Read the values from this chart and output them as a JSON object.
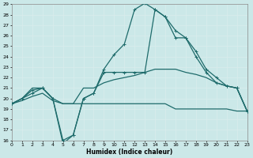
{
  "xlabel": "Humidex (Indice chaleur)",
  "xlim": [
    0,
    23
  ],
  "ylim": [
    16,
    29
  ],
  "yticks": [
    16,
    17,
    18,
    19,
    20,
    21,
    22,
    23,
    24,
    25,
    26,
    27,
    28,
    29
  ],
  "xticks": [
    0,
    1,
    2,
    3,
    4,
    5,
    6,
    7,
    8,
    9,
    10,
    11,
    12,
    13,
    14,
    15,
    16,
    17,
    18,
    19,
    20,
    21,
    22,
    23
  ],
  "bg_color": "#cbe8e8",
  "grid_color": "#d8ecec",
  "line_color": "#1e6b6b",
  "curve1": {
    "x": [
      0,
      1,
      2,
      3,
      4,
      5,
      6,
      7,
      8,
      9,
      10,
      11,
      12,
      13,
      14,
      15,
      16,
      17,
      18,
      19,
      20,
      21,
      22,
      23
    ],
    "y": [
      19.5,
      20.0,
      20.5,
      21.0,
      20.0,
      15.7,
      16.5,
      20.0,
      20.5,
      22.8,
      24.2,
      25.2,
      28.5,
      29.1,
      28.5,
      27.8,
      26.5,
      25.8,
      24.5,
      22.8,
      22.0,
      21.2,
      21.0,
      18.8
    ],
    "marker": true
  },
  "curve2": {
    "x": [
      0,
      1,
      2,
      3,
      4,
      5,
      6,
      7,
      8,
      9,
      10,
      11,
      12,
      13,
      14,
      15,
      16,
      17,
      18,
      19,
      20,
      21,
      22,
      23
    ],
    "y": [
      19.5,
      20.0,
      21.0,
      21.0,
      20.0,
      19.5,
      19.5,
      21.0,
      21.0,
      21.5,
      21.8,
      22.0,
      22.2,
      22.5,
      22.8,
      22.8,
      22.8,
      22.5,
      22.3,
      22.0,
      21.5,
      21.2,
      21.0,
      18.8
    ],
    "marker": false
  },
  "curve3": {
    "x": [
      0,
      1,
      2,
      3,
      4,
      5,
      6,
      7,
      8,
      9,
      10,
      11,
      12,
      13,
      14,
      15,
      16,
      17,
      18,
      19,
      20,
      21,
      22,
      23
    ],
    "y": [
      19.5,
      19.8,
      20.2,
      20.5,
      19.8,
      19.5,
      19.5,
      19.5,
      19.5,
      19.5,
      19.5,
      19.5,
      19.5,
      19.5,
      19.5,
      19.5,
      19.0,
      19.0,
      19.0,
      19.0,
      19.0,
      19.0,
      18.8,
      18.8
    ],
    "marker": false
  },
  "curve4": {
    "x": [
      0,
      1,
      2,
      3,
      4,
      5,
      6,
      7,
      8,
      9,
      10,
      11,
      12,
      13,
      14,
      15,
      16,
      17,
      18,
      19,
      20,
      21,
      22,
      23
    ],
    "y": [
      19.5,
      20.0,
      20.8,
      21.0,
      20.0,
      16.0,
      16.5,
      20.0,
      20.5,
      22.5,
      22.5,
      22.5,
      22.5,
      22.5,
      28.5,
      27.8,
      25.8,
      25.8,
      24.0,
      22.5,
      21.5,
      21.2,
      21.0,
      18.8
    ],
    "marker": true
  }
}
